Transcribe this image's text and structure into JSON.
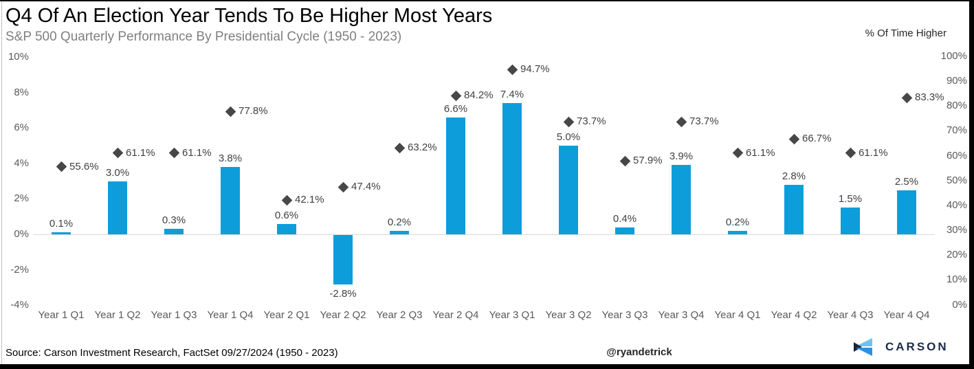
{
  "footer": {
    "source": "Source: Carson Investment Research, FactSet 09/27/2024 (1950 - 2023)",
    "handle": "@ryandetrick",
    "brand": "CARSON"
  },
  "chart_data": {
    "type": "combo",
    "title": "Q4 Of An Election Year Tends To Be Higher Most Years",
    "subtitle": "S&P 500 Quarterly Performance By Presidential Cycle (1950 - 2023)",
    "categories": [
      "Year 1 Q1",
      "Year 1 Q2",
      "Year 1 Q3",
      "Year 1 Q4",
      "Year 2 Q1",
      "Year 2 Q2",
      "Year 2 Q3",
      "Year 2 Q4",
      "Year 3 Q1",
      "Year 3 Q2",
      "Year 3 Q3",
      "Year 3 Q4",
      "Year 4 Q1",
      "Year 4 Q2",
      "Year 4 Q3",
      "Year 4 Q4"
    ],
    "series": [
      {
        "name": "S&P 500 Quarterly Performance",
        "type": "bar",
        "axis": "left",
        "color": "#0d9ddb",
        "values": [
          0.1,
          3.0,
          0.3,
          3.8,
          0.6,
          -2.8,
          0.2,
          6.6,
          7.4,
          5.0,
          0.4,
          3.9,
          0.2,
          2.8,
          1.5,
          2.5
        ],
        "labels": [
          "0.1%",
          "3.0%",
          "0.3%",
          "3.8%",
          "0.6%",
          "-2.8%",
          "0.2%",
          "6.6%",
          "7.4%",
          "5.0%",
          "0.4%",
          "3.9%",
          "0.2%",
          "2.8%",
          "1.5%",
          "2.5%"
        ]
      },
      {
        "name": "% Of Time Higher",
        "type": "scatter-diamond",
        "axis": "right",
        "color": "#474747",
        "values": [
          55.6,
          61.1,
          61.1,
          77.8,
          42.1,
          47.4,
          63.2,
          84.2,
          94.7,
          73.7,
          57.9,
          73.7,
          61.1,
          66.7,
          61.1,
          83.3
        ],
        "labels": [
          "55.6%",
          "61.1%",
          "61.1%",
          "77.8%",
          "42.1%",
          "47.4%",
          "63.2%",
          "84.2%",
          "94.7%",
          "73.7%",
          "57.9%",
          "73.7%",
          "61.1%",
          "66.7%",
          "61.1%",
          "83.3%"
        ]
      }
    ],
    "left_axis": {
      "range": [
        -4,
        10
      ],
      "values": [
        10,
        8,
        6,
        4,
        2,
        0,
        -2,
        -4
      ],
      "ticks": [
        "10%",
        "8%",
        "6%",
        "4%",
        "2%",
        "0%",
        "-2%",
        "-4%"
      ]
    },
    "right_axis": {
      "label": "% Of Time Higher",
      "range": [
        0,
        100
      ],
      "values": [
        100,
        90,
        80,
        70,
        60,
        50,
        40,
        30,
        20,
        10,
        0
      ],
      "ticks": [
        "100%",
        "90%",
        "80%",
        "70%",
        "60%",
        "50%",
        "40%",
        "30%",
        "20%",
        "10%",
        "0%"
      ]
    },
    "grid": false,
    "legend": "none"
  }
}
